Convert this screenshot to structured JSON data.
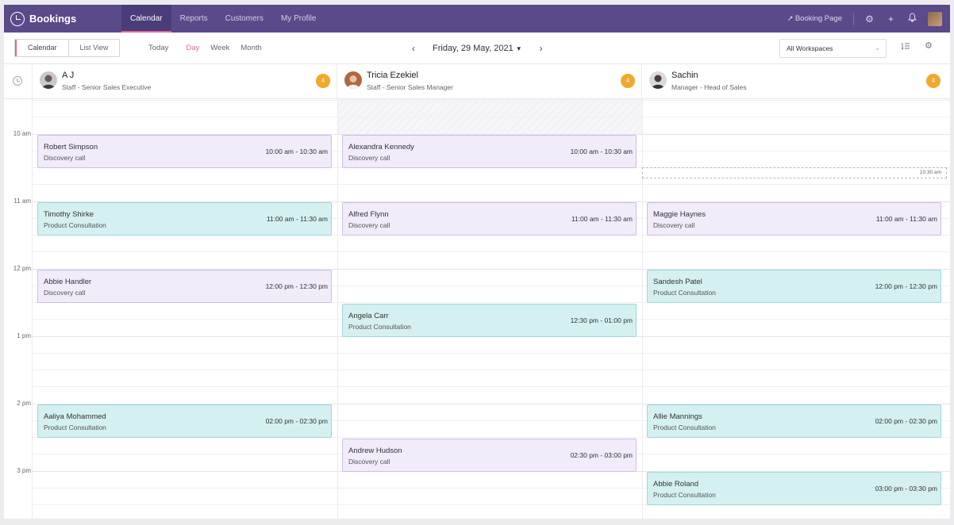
{
  "app": {
    "name": "Bookings"
  },
  "nav": [
    {
      "label": "Calendar",
      "active": true
    },
    {
      "label": "Reports"
    },
    {
      "label": "Customers"
    },
    {
      "label": "My Profile"
    }
  ],
  "topbar": {
    "booking_page_label": "Booking Page",
    "icons": [
      "rocket-icon",
      "gear-icon",
      "plus-icon",
      "bell-icon",
      "user-avatar"
    ]
  },
  "toolbar": {
    "view_toggle": [
      "Calendar",
      "List View"
    ],
    "range_tabs": [
      "Today",
      "Day",
      "Week",
      "Month"
    ],
    "active_range": "Day",
    "date_label": "Friday, 29 May, 2021",
    "workspace": "All Workspaces"
  },
  "staff": [
    {
      "name": "A J",
      "role": "Staff - Senior Sales Executive",
      "count": "4"
    },
    {
      "name": "Tricia Ezekiel",
      "role": "Staff - Senior Sales Manager",
      "count": "4"
    },
    {
      "name": "Sachin",
      "role": "Manager - Head of Sales",
      "count": "4"
    }
  ],
  "time_labels": [
    "10 am",
    "11 am",
    "12 pm",
    "1 pm",
    "2 pm",
    "3 pm"
  ],
  "now_marker": "10:30 am",
  "events": {
    "aj": [
      {
        "name": "Robert Simpson",
        "type": "Discovery call",
        "time": "10:00 am - 10:30 am"
      },
      {
        "name": "Timothy Shirke",
        "type": "Product Consultation",
        "time": "11:00 am - 11:30 am"
      },
      {
        "name": "Abbie Handler",
        "type": "Discovery call",
        "time": "12:00 pm - 12:30 pm"
      },
      {
        "name": "Aaliya Mohammed",
        "type": "Product Consultation",
        "time": "02:00 pm - 02:30 pm"
      }
    ],
    "tricia": [
      {
        "name": "Alexandra Kennedy",
        "type": "Discovery call",
        "time": "10:00 am - 10:30 am"
      },
      {
        "name": "Alfred Flynn",
        "type": "Discovery call",
        "time": "11:00 am - 11:30 am"
      },
      {
        "name": "Angela Carr",
        "type": "Product Consultation",
        "time": "12:30 pm - 01:00 pm"
      },
      {
        "name": "Andrew Hudson",
        "type": "Discovery call",
        "time": "02:30 pm - 03:00 pm"
      }
    ],
    "sachin": [
      {
        "name": "Maggie Haynes",
        "type": "Discovery call",
        "time": "11:00 am - 11:30 am"
      },
      {
        "name": "Sandesh Patel",
        "type": "Product Consultation",
        "time": "12:00 pm - 12:30 pm"
      },
      {
        "name": "Allie Mannings",
        "type": "Product Consultation",
        "time": "02:00 pm - 02:30 pm"
      },
      {
        "name": "Abbie Roland",
        "type": "Product Consultation",
        "time": "03:00 pm - 03:30 pm"
      }
    ]
  },
  "colors": {
    "topbar": "#5a4a8a",
    "accent": "#e4678e",
    "count_badge": "#f3a72b",
    "discovery_bg": "#f1ebfa",
    "consult_bg": "#d5f0f1"
  }
}
